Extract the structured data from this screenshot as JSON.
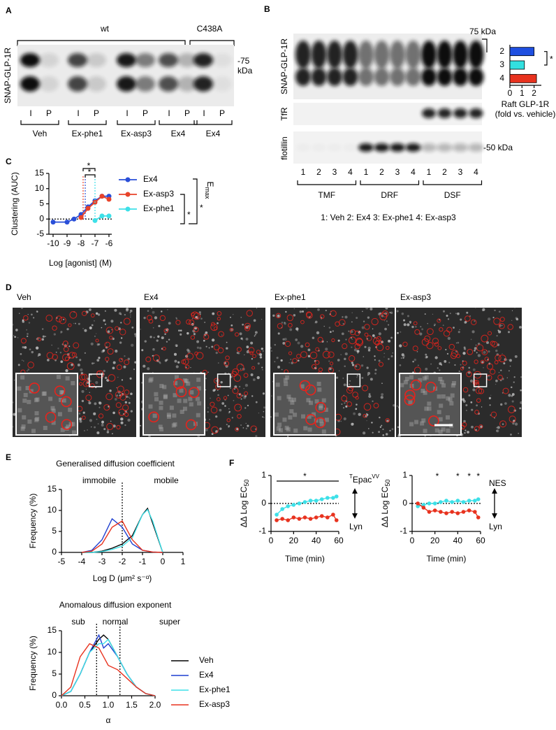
{
  "panel_labels": [
    "A",
    "B",
    "C",
    "D",
    "E",
    "F"
  ],
  "panel_a": {
    "groups": [
      "wt",
      "C438A"
    ],
    "marker": [
      "-75",
      "kDa"
    ],
    "ylabel": "SNAP-GLP-1R",
    "lanes": [
      "I",
      "P",
      "I",
      "P",
      "I",
      "P",
      "I",
      "P",
      "I",
      "P"
    ],
    "treatments": [
      "Veh",
      "Ex-phe1",
      "Ex-asp3",
      "Ex4",
      "Ex4"
    ]
  },
  "panel_b": {
    "marker_top": "75 kDa",
    "rows": [
      "SNAP-GLP-1R",
      "TfR",
      "flotillin"
    ],
    "marker_bottom": "-50 kDa",
    "lanes": [
      "1",
      "2",
      "3",
      "4",
      "1",
      "2",
      "3",
      "4",
      "1",
      "2",
      "3",
      "4"
    ],
    "fractions": [
      "TMF",
      "DRF",
      "DSF"
    ],
    "key": "1: Veh  2: Ex4  3: Ex-phe1  4: Ex-asp3"
  },
  "panel_d": {
    "titles": [
      "Veh",
      "Ex4",
      "Ex-phe1",
      "Ex-asp3"
    ]
  },
  "chart_data": [
    {
      "type": "bar",
      "orientation": "horizontal",
      "categories": [
        "2",
        "3",
        "4"
      ],
      "values": [
        2.0,
        1.2,
        2.2
      ],
      "colors": [
        "#1f4fe0",
        "#33e0e0",
        "#e8321e"
      ],
      "xlim": [
        0,
        2.6
      ],
      "xticks": [
        0,
        1,
        2
      ],
      "xlabel": "Raft GLP-1R",
      "xlabel2": "(fold vs. vehicle)",
      "annotation": "*"
    },
    {
      "type": "line",
      "xlabel": "Log [agonist] (M)",
      "ylabel": "Clustering (AUC)",
      "x": [
        -10,
        -9,
        -8.5,
        -8,
        -7.5,
        -7,
        -6.5,
        -6
      ],
      "xlim": [
        -10.3,
        -5.8
      ],
      "xticks": [
        -10,
        -9,
        -8,
        -7,
        -6
      ],
      "ylim": [
        -5,
        15
      ],
      "yticks": [
        -5,
        0,
        5,
        10,
        15
      ],
      "markers": true,
      "zero_line": true,
      "series": [
        {
          "name": "Ex4",
          "color": "#2a4fd8",
          "values": [
            -1,
            -1,
            0,
            1.5,
            4,
            6,
            7.5,
            7.5
          ],
          "ec50": -7.7
        },
        {
          "name": "Ex-asp3",
          "color": "#e8432a",
          "values": [
            null,
            null,
            null,
            0.5,
            3.5,
            5.5,
            7.5,
            6.5
          ],
          "ec50": -7.85
        },
        {
          "name": "Ex-phe1",
          "color": "#3de0e8",
          "values": [
            null,
            null,
            null,
            null,
            null,
            -0.5,
            1,
            1
          ],
          "ec50": -7.0
        }
      ],
      "stars": [
        "*",
        "*",
        "*",
        "*"
      ],
      "emax": [
        "E",
        "max"
      ]
    },
    {
      "type": "line",
      "title": "Generalised diffusion coefficient",
      "regions": [
        "immobile",
        "mobile"
      ],
      "xlabel": "Log D (μm² s⁻ᵅ)",
      "ylabel": "Frequency (%)",
      "x": [
        -4,
        -3.5,
        -3,
        -2.5,
        -2,
        -1.5,
        -1,
        -0.75,
        -0.5,
        0
      ],
      "xlim": [
        -5,
        1
      ],
      "xticks": [
        -5,
        -4,
        -3,
        -2,
        -1,
        0,
        1
      ],
      "ylim": [
        0,
        15
      ],
      "yticks": [
        0,
        5,
        10,
        15
      ],
      "ref_x": [
        -2
      ],
      "series": [
        {
          "name": "Veh",
          "color": "#000000",
          "values": [
            0,
            0,
            0.3,
            1,
            2,
            4,
            9,
            10.5,
            7,
            0
          ]
        },
        {
          "name": "Ex4",
          "color": "#1f3fd0",
          "values": [
            0,
            0.5,
            3,
            8,
            6,
            2,
            0.5,
            0.3,
            0.1,
            0
          ]
        },
        {
          "name": "Ex-phe1",
          "color": "#3de0e8",
          "values": [
            0,
            0,
            0.2,
            0.7,
            1.5,
            3.5,
            9,
            10.2,
            7.5,
            0
          ]
        },
        {
          "name": "Ex-asp3",
          "color": "#e8321e",
          "values": [
            0,
            0.3,
            2,
            6,
            7.5,
            3,
            0.5,
            0.3,
            0.1,
            0
          ]
        }
      ]
    },
    {
      "type": "line",
      "title": "Anomalous diffusion exponent",
      "regions": [
        "sub",
        "normal",
        "super"
      ],
      "xlabel": "α",
      "ylabel": "Frequency (%)",
      "x": [
        0,
        0.2,
        0.4,
        0.6,
        0.8,
        0.9,
        1.0,
        1.2,
        1.4,
        1.6,
        1.8,
        2.0
      ],
      "xlim": [
        0,
        2
      ],
      "xticks": [
        {
          "value": 0,
          "label": "0.0"
        },
        {
          "value": 0.5,
          "label": "0.5"
        },
        {
          "value": 1,
          "label": "1.0"
        },
        {
          "value": 1.5,
          "label": "1.5"
        },
        {
          "value": 2,
          "label": "2.0"
        }
      ],
      "ylim": [
        0,
        15
      ],
      "yticks": [
        0,
        5,
        10,
        15
      ],
      "ref_x": [
        0.75,
        1.25
      ],
      "series": [
        {
          "name": "Veh",
          "color": "#000000",
          "values": [
            0,
            1,
            5,
            10,
            13,
            14,
            13,
            9,
            5,
            2,
            0.5,
            0
          ]
        },
        {
          "name": "Ex4",
          "color": "#1f3fd0",
          "values": [
            0,
            1,
            5,
            10,
            14,
            11,
            12,
            9,
            5,
            2,
            0.5,
            0
          ]
        },
        {
          "name": "Ex-phe1",
          "color": "#3de0e8",
          "values": [
            0,
            1,
            5,
            10,
            12,
            12,
            13,
            9,
            5,
            2,
            0.5,
            0
          ]
        },
        {
          "name": "Ex-asp3",
          "color": "#e8321e",
          "values": [
            0,
            2,
            9,
            12,
            11,
            9,
            7,
            6,
            4,
            2,
            0.5,
            0
          ]
        }
      ]
    },
    {
      "type": "line",
      "xlabel": "Time (min)",
      "ylabel": "ΔΔ Log EC",
      "ylabel_sub": "50",
      "x": [
        5,
        10,
        15,
        20,
        25,
        30,
        35,
        40,
        45,
        50,
        55,
        58
      ],
      "xlim": [
        0,
        60
      ],
      "xticks": [
        0,
        20,
        40,
        60
      ],
      "ylim": [
        -1,
        1
      ],
      "yticks": [
        -1,
        0,
        1
      ],
      "markers": true,
      "zero_line": true,
      "sensor": [
        "T",
        "Epac",
        "VV"
      ],
      "lower": "Lyn",
      "stars": [
        {
          "text": "*",
          "x": 30
        }
      ],
      "series": [
        {
          "color": "#3de0e8",
          "values": [
            -0.4,
            -0.2,
            -0.1,
            -0.05,
            0,
            0.05,
            0.1,
            0.1,
            0.15,
            0.2,
            0.2,
            0.25
          ]
        },
        {
          "color": "#e8321e",
          "values": [
            -0.6,
            -0.55,
            -0.6,
            -0.5,
            -0.55,
            -0.5,
            -0.55,
            -0.5,
            -0.45,
            -0.5,
            -0.4,
            -0.6
          ]
        }
      ]
    },
    {
      "type": "line",
      "xlabel": "Time (min)",
      "ylabel": "ΔΔ Log EC",
      "ylabel_sub": "50",
      "x": [
        5,
        10,
        15,
        20,
        25,
        30,
        35,
        40,
        45,
        50,
        55,
        58
      ],
      "xlim": [
        0,
        60
      ],
      "xticks": [
        0,
        20,
        40,
        60
      ],
      "ylim": [
        -1,
        1
      ],
      "yticks": [
        -1,
        0,
        1
      ],
      "markers": true,
      "zero_line": true,
      "sensor": [
        "",
        "NES",
        ""
      ],
      "lower": "Lyn",
      "stars": [
        {
          "text": "*",
          "x": 22
        },
        {
          "text": "*",
          "x": 40
        },
        {
          "text": "*",
          "x": 50
        },
        {
          "text": "*",
          "x": 58
        }
      ],
      "series": [
        {
          "color": "#3de0e8",
          "values": [
            -0.1,
            -0.05,
            0,
            0,
            0.05,
            0.1,
            0.05,
            0.1,
            0.05,
            0.1,
            0.1,
            0.15
          ]
        },
        {
          "color": "#e8321e",
          "values": [
            0,
            -0.15,
            -0.3,
            -0.25,
            -0.3,
            -0.35,
            -0.3,
            -0.35,
            -0.3,
            -0.25,
            -0.3,
            -0.5
          ]
        }
      ]
    }
  ]
}
